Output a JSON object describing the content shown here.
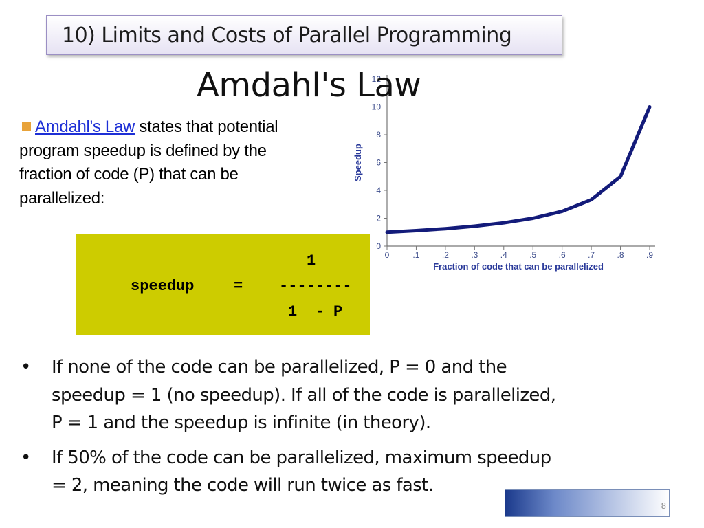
{
  "header": {
    "title": "10) Limits and Costs of Parallel Programming"
  },
  "page_title": "Amdahl's Law",
  "intro": {
    "link_text": "Amdahl's Law",
    "lines": [
      " states that potential",
      "program speedup is defined by the",
      "fraction of code (P) that can be",
      "parallelized:"
    ]
  },
  "formula": {
    "numerator": "1",
    "lhs": "speedup",
    "equals": "=",
    "fraction_bar": "--------",
    "denominator": "1  - P"
  },
  "chart_data": {
    "type": "line",
    "xlabel": "Fraction of code that can be parallelized",
    "ylabel": "Speedup",
    "x_ticks": [
      "0",
      ".1",
      ".2",
      ".3",
      ".4",
      ".5",
      ".6",
      ".7",
      ".8",
      ".9"
    ],
    "y_ticks": [
      "0",
      "2",
      "4",
      "6",
      "8",
      "10",
      "12"
    ],
    "xlim": [
      0,
      0.9
    ],
    "ylim": [
      0,
      12
    ],
    "grid": false,
    "line_color": "#131b7a",
    "series": [
      {
        "x": [
          0,
          0.1,
          0.2,
          0.3,
          0.4,
          0.5,
          0.6,
          0.7,
          0.8,
          0.9
        ],
        "y": [
          1.0,
          1.11,
          1.25,
          1.43,
          1.67,
          2.0,
          2.5,
          3.33,
          5.0,
          10.0
        ]
      }
    ]
  },
  "bullets": [
    {
      "symbol": "•",
      "lines": [
        "If none of the code can be parallelized, P = 0 and the",
        "speedup = 1 (no speedup). If all of the code is parallelized,",
        "P = 1 and the speedup is infinite (in theory)."
      ]
    },
    {
      "symbol": "•",
      "lines": [
        "If 50% of the code can be parallelized, maximum speedup",
        "= 2, meaning the code will run twice as fast."
      ]
    }
  ],
  "footer": {
    "page_number": "8"
  },
  "colors": {
    "accent_square": "#e8a33a",
    "formula_bg": "#cdcc00",
    "link": "#1d2fd6"
  }
}
